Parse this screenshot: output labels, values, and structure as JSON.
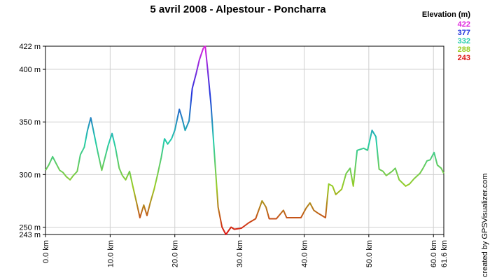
{
  "chart_data": {
    "type": "line",
    "title": "5 avril 2008 - Alpestour - Poncharra",
    "legend_title": "Elevation (m)",
    "legend": [
      {
        "value": 422,
        "color": "#dd22dd"
      },
      {
        "value": 377,
        "color": "#2233dd"
      },
      {
        "value": 332,
        "color": "#22ccaa"
      },
      {
        "value": 288,
        "color": "#99cc22"
      },
      {
        "value": 243,
        "color": "#dd1111"
      }
    ],
    "credit": "created by GPSVisualizer.com",
    "grid": true,
    "xlim": [
      0,
      61.6
    ],
    "ylim": [
      243,
      422
    ],
    "xticks": [
      {
        "value": 0,
        "label": "0.0 km"
      },
      {
        "value": 10,
        "label": "10.0 km"
      },
      {
        "value": 20,
        "label": "20.0 km"
      },
      {
        "value": 30,
        "label": "30.0 km"
      },
      {
        "value": 40,
        "label": "40.0 km"
      },
      {
        "value": 50,
        "label": "50.0 km"
      },
      {
        "value": 60,
        "label": "60.0 km"
      },
      {
        "value": 61.6,
        "label": "61.6 km"
      }
    ],
    "yticks": [
      {
        "value": 243,
        "label": "243 m"
      },
      {
        "value": 250,
        "label": "250 m"
      },
      {
        "value": 300,
        "label": "300 m"
      },
      {
        "value": 350,
        "label": "350 m"
      },
      {
        "value": 400,
        "label": "400 m"
      },
      {
        "value": 422,
        "label": "422 m"
      }
    ],
    "x": [
      0.0,
      0.5,
      1.1,
      1.6,
      2.2,
      2.7,
      3.2,
      3.8,
      4.3,
      4.9,
      5.4,
      6.0,
      6.5,
      7.0,
      7.6,
      8.1,
      8.7,
      9.2,
      9.7,
      10.3,
      10.8,
      11.4,
      11.9,
      12.4,
      13.0,
      13.5,
      14.1,
      14.6,
      15.2,
      15.7,
      16.2,
      16.8,
      17.3,
      17.9,
      18.4,
      18.9,
      19.5,
      20.0,
      20.7,
      21.1,
      21.6,
      22.2,
      22.7,
      23.3,
      23.8,
      24.4,
      24.7,
      25.1,
      25.6,
      26.2,
      26.7,
      27.3,
      27.9,
      28.7,
      29.2,
      30.3,
      31.4,
      32.5,
      33.5,
      34.1,
      34.6,
      35.7,
      36.8,
      37.3,
      38.4,
      39.5,
      40.3,
      40.9,
      41.5,
      42.2,
      43.3,
      43.8,
      44.4,
      44.9,
      45.8,
      46.5,
      47.1,
      47.6,
      48.2,
      49.2,
      49.8,
      50.5,
      51.1,
      51.6,
      52.2,
      52.7,
      53.6,
      54.1,
      54.7,
      55.7,
      56.3,
      57.0,
      57.9,
      58.4,
      59.0,
      59.5,
      60.1,
      60.6,
      61.2,
      61.6
    ],
    "y": [
      304,
      309,
      317,
      311,
      304,
      302,
      298,
      295,
      299,
      303,
      319,
      326,
      342,
      354,
      336,
      321,
      304,
      316,
      328,
      339,
      326,
      306,
      299,
      295,
      303,
      289,
      273,
      259,
      271,
      261,
      273,
      286,
      299,
      316,
      334,
      329,
      334,
      342,
      362,
      354,
      342,
      351,
      382,
      396,
      409,
      420,
      422,
      399,
      366,
      313,
      269,
      250,
      243,
      250,
      248,
      249,
      254,
      258,
      275,
      269,
      258,
      258,
      266,
      259,
      259,
      259,
      268,
      273,
      266,
      263,
      259,
      291,
      289,
      281,
      286,
      301,
      306,
      289,
      323,
      325,
      323,
      342,
      336,
      305,
      303,
      299,
      303,
      306,
      295,
      289,
      291,
      296,
      301,
      306,
      313,
      314,
      321,
      309,
      306,
      301
    ]
  }
}
